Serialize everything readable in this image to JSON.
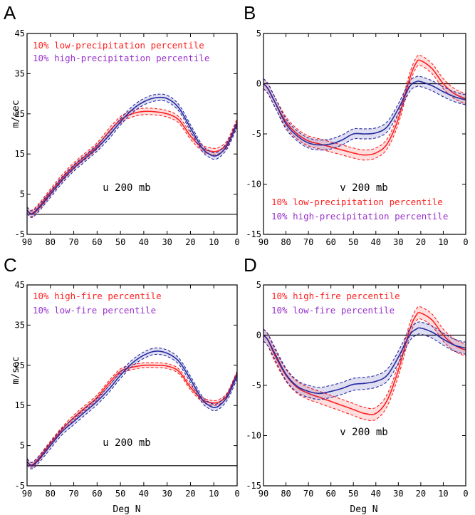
{
  "colors": {
    "red": "#ff2020",
    "blue": "#262aa0",
    "purple": "#9932cc",
    "black": "#000000"
  },
  "chart_data": [
    {
      "type": "line",
      "panel": "A",
      "annotation": "u 200 mb",
      "xlabel": "",
      "ylabel": "m/sec",
      "xlim": [
        90,
        0
      ],
      "ylim": [
        -5,
        45
      ],
      "xticks": [
        "90",
        "80",
        "70",
        "60",
        "50",
        "40",
        "30",
        "20",
        "10",
        "0"
      ],
      "yticks": [
        "-5",
        "5",
        "15",
        "25",
        "35",
        "45"
      ],
      "zero_line": true,
      "legend": [
        "10% low-precipitation percentile",
        "10% high-precipitation percentile"
      ],
      "legend_position": "top-left",
      "x": [
        90,
        88,
        85,
        80,
        75,
        70,
        65,
        60,
        55,
        50,
        45,
        40,
        35,
        30,
        25,
        20,
        15,
        12,
        10,
        8,
        5,
        3,
        0
      ],
      "series": [
        {
          "name": "10% low-precipitation percentile",
          "color_key": "red",
          "band": 0.8,
          "values": [
            1.0,
            0.2,
            1.8,
            5.5,
            9.0,
            12.0,
            14.5,
            17.0,
            20.5,
            23.5,
            25.0,
            25.6,
            25.5,
            25.0,
            23.5,
            19.5,
            16.5,
            15.8,
            15.6,
            15.8,
            17.0,
            19.0,
            23.0
          ]
        },
        {
          "name": "10% high-precipitation percentile",
          "color_key": "blue",
          "band": 0.8,
          "values": [
            1.0,
            0.0,
            1.5,
            5.0,
            8.5,
            11.5,
            14.0,
            16.5,
            19.5,
            23.0,
            26.0,
            28.0,
            29.0,
            28.8,
            26.5,
            21.5,
            16.5,
            15.0,
            14.5,
            14.8,
            16.5,
            18.5,
            22.5
          ]
        }
      ]
    },
    {
      "type": "line",
      "panel": "B",
      "annotation": "v 200 mb",
      "xlabel": "",
      "ylabel": "",
      "xlim": [
        90,
        0
      ],
      "ylim": [
        -15,
        5
      ],
      "xticks": [
        "90",
        "80",
        "70",
        "60",
        "50",
        "40",
        "30",
        "20",
        "10",
        "0"
      ],
      "yticks": [
        "-15",
        "-10",
        "-5",
        "0",
        "5"
      ],
      "zero_line": true,
      "legend": [
        "10% low-precipitation percentile",
        "10% high-precipitation percentile"
      ],
      "legend_position": "bottom-right",
      "x": [
        90,
        88,
        85,
        80,
        75,
        70,
        65,
        60,
        55,
        50,
        45,
        40,
        35,
        30,
        25,
        22,
        20,
        15,
        10,
        5,
        0
      ],
      "series": [
        {
          "name": "10% low-precipitation percentile",
          "color_key": "red",
          "band": 0.5,
          "values": [
            0.0,
            -0.5,
            -1.8,
            -3.8,
            -5.0,
            -5.7,
            -6.0,
            -6.3,
            -6.6,
            -6.9,
            -7.1,
            -6.9,
            -6.0,
            -3.5,
            0.5,
            2.1,
            2.3,
            1.5,
            0.0,
            -1.0,
            -1.5
          ]
        },
        {
          "name": "10% high-precipitation percentile",
          "color_key": "blue",
          "band": 0.5,
          "values": [
            0.0,
            -0.5,
            -1.8,
            -4.0,
            -5.2,
            -5.9,
            -6.1,
            -6.0,
            -5.6,
            -5.0,
            -5.0,
            -4.9,
            -4.3,
            -2.5,
            -0.3,
            0.2,
            0.2,
            -0.2,
            -0.8,
            -1.3,
            -1.6
          ]
        }
      ]
    },
    {
      "type": "line",
      "panel": "C",
      "annotation": "u 200 mb",
      "xlabel": "Deg N",
      "ylabel": "m/sec",
      "xlim": [
        90,
        0
      ],
      "ylim": [
        -5,
        45
      ],
      "xticks": [
        "90",
        "80",
        "70",
        "60",
        "50",
        "40",
        "30",
        "20",
        "10",
        "0"
      ],
      "yticks": [
        "-5",
        "5",
        "15",
        "25",
        "35",
        "45"
      ],
      "zero_line": true,
      "legend": [
        "10% high-fire percentile",
        "10% low-fire percentile"
      ],
      "legend_position": "top-left",
      "x": [
        90,
        88,
        85,
        80,
        75,
        70,
        65,
        60,
        55,
        50,
        45,
        40,
        35,
        30,
        25,
        20,
        15,
        12,
        10,
        8,
        5,
        3,
        0
      ],
      "series": [
        {
          "name": "10% high-fire percentile",
          "color_key": "red",
          "band": 0.6,
          "values": [
            1.0,
            0.2,
            1.8,
            5.5,
            9.0,
            12.0,
            14.5,
            17.0,
            20.5,
            23.5,
            24.5,
            25.0,
            25.0,
            24.8,
            23.5,
            19.5,
            16.5,
            15.8,
            15.6,
            15.8,
            17.0,
            19.0,
            23.0
          ]
        },
        {
          "name": "10% low-fire percentile",
          "color_key": "blue",
          "band": 0.8,
          "values": [
            1.0,
            0.0,
            1.5,
            5.0,
            8.5,
            11.0,
            13.5,
            16.0,
            19.0,
            22.5,
            25.5,
            27.5,
            28.5,
            28.0,
            26.0,
            21.5,
            16.5,
            15.0,
            14.5,
            14.8,
            16.5,
            18.5,
            22.5
          ]
        }
      ]
    },
    {
      "type": "line",
      "panel": "D",
      "annotation": "v 200 mb",
      "xlabel": "Deg N",
      "ylabel": "",
      "xlim": [
        90,
        0
      ],
      "ylim": [
        -15,
        5
      ],
      "xticks": [
        "90",
        "80",
        "70",
        "60",
        "50",
        "40",
        "30",
        "20",
        "10",
        "0"
      ],
      "yticks": [
        "-15",
        "-10",
        "-5",
        "0",
        "5"
      ],
      "zero_line": true,
      "legend": [
        "10% high-fire percentile",
        "10% low-fire percentile"
      ],
      "legend_position": "top-left",
      "x": [
        90,
        88,
        85,
        80,
        75,
        70,
        65,
        60,
        55,
        50,
        45,
        40,
        35,
        30,
        25,
        22,
        20,
        15,
        10,
        5,
        0
      ],
      "series": [
        {
          "name": "10% high-fire percentile",
          "color_key": "red",
          "band": 0.6,
          "values": [
            0.0,
            -0.5,
            -2.0,
            -4.0,
            -5.2,
            -5.8,
            -6.2,
            -6.6,
            -7.0,
            -7.4,
            -7.8,
            -7.8,
            -6.5,
            -3.5,
            0.5,
            2.0,
            2.2,
            1.5,
            0.0,
            -1.0,
            -1.5
          ]
        },
        {
          "name": "10% low-fire percentile",
          "color_key": "blue",
          "band": 0.6,
          "values": [
            0.0,
            -0.5,
            -1.8,
            -3.9,
            -5.1,
            -5.6,
            -5.8,
            -5.6,
            -5.3,
            -4.9,
            -4.8,
            -4.6,
            -4.0,
            -2.2,
            0.0,
            0.6,
            0.7,
            0.3,
            -0.4,
            -1.0,
            -1.3
          ]
        }
      ]
    }
  ]
}
